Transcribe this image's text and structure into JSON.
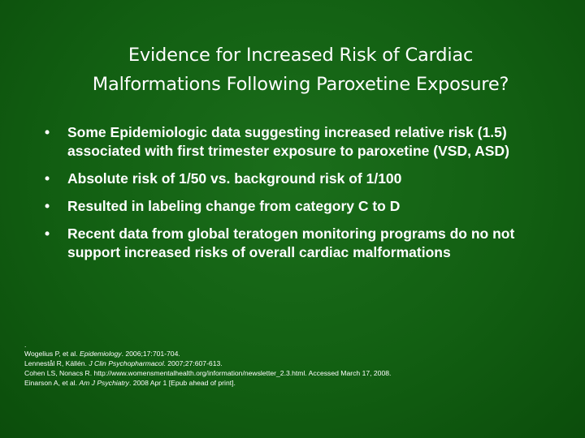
{
  "slide": {
    "title_lines": [
      "Evidence for Increased Risk of Cardiac",
      "Malformations Following Paroxetine Exposure?"
    ],
    "bullet_symbol": "•",
    "bullets": [
      "Some Epidemiologic data suggesting increased relative risk (1.5) associated with first trimester exposure to paroxetine (VSD, ASD)",
      "Absolute risk of 1/50 vs. background risk of 1/100",
      "Resulted in  labeling change from category C to D",
      "Recent data from global teratogen monitoring programs do no not support increased risks of overall cardiac malformations"
    ],
    "references_mark": ".",
    "references": [
      {
        "pre": "Wogelius P, et al. ",
        "journal": "Epidemiology",
        "post": ". 2006;17:701-704."
      },
      {
        "pre": "Lennestål R, Källén. ",
        "journal": "J Clin Psychopharmacol",
        "post": ". 2007;27:607-613."
      },
      {
        "pre": "Cohen LS, Nonacs R. http://www.womensmentalhealth.org/information/newsletter_2.3.html. Accessed March 17, 2008.",
        "journal": "",
        "post": ""
      },
      {
        "pre": "Einarson A, et al. ",
        "journal": "Am J Psychiatry",
        "post": ". 2008 Apr 1 [Epub ahead of print]."
      }
    ]
  }
}
